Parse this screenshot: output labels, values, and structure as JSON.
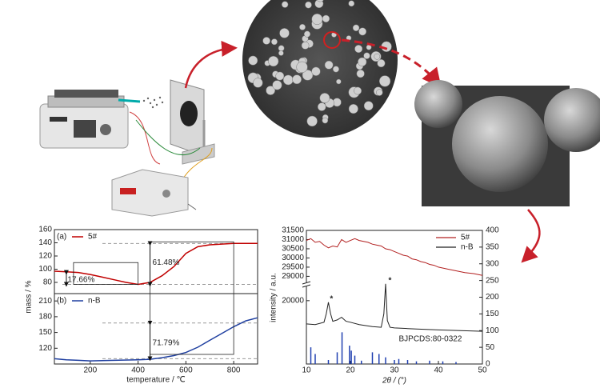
{
  "chart_data": [
    {
      "type": "line",
      "xlabel": "temperature / ℃",
      "ylabel": "mass / %",
      "xlim": [
        50,
        900
      ],
      "xticks": [
        200,
        400,
        600,
        800
      ],
      "panels": [
        {
          "label": "(a)",
          "ylim": [
            63,
            160
          ],
          "yticks": [
            80,
            100,
            120,
            140,
            160
          ],
          "hlines": [
            139,
            77
          ],
          "annotation": [
            "17.66%",
            "61.48%"
          ],
          "series": [
            {
              "name": "5#",
              "color": "#c00000",
              "x": [
                50,
                100,
                150,
                200,
                250,
                300,
                350,
                400,
                450,
                500,
                550,
                600,
                650,
                700,
                750,
                800,
                850,
                900
              ],
              "values": [
                97,
                96,
                95,
                92,
                88,
                84,
                80,
                77,
                80,
                90,
                104,
                124,
                134,
                137,
                138,
                139,
                139,
                139
              ]
            }
          ]
        },
        {
          "label": "(b)",
          "ylim": [
            90,
            224
          ],
          "yticks": [
            120,
            150,
            180,
            210
          ],
          "hlines": [
            168,
            100
          ],
          "annotation": [
            "71.79%"
          ],
          "series": [
            {
              "name": "n-B",
              "color": "#1f3fa0",
              "x": [
                50,
                100,
                150,
                200,
                300,
                400,
                450,
                500,
                550,
                600,
                650,
                700,
                750,
                800,
                850,
                900
              ],
              "values": [
                100,
                98,
                97,
                96,
                97,
                98,
                99,
                102,
                106,
                112,
                122,
                135,
                148,
                161,
                172,
                178
              ]
            }
          ]
        }
      ]
    },
    {
      "type": "line",
      "xlabel": "2θ / (°)",
      "ylabel": "intensity / a.u.",
      "xlim": [
        10,
        50
      ],
      "xticks": [
        10,
        20,
        30,
        40,
        50
      ],
      "ylim": [
        28800,
        31500
      ],
      "yticks": [
        29000,
        29500,
        30000,
        30500,
        31000,
        31500
      ],
      "ylim_lower": [
        0,
        24000
      ],
      "yticks_lower": [
        20000
      ],
      "y2lim": [
        0,
        400
      ],
      "y2ticks": [
        0,
        50,
        100,
        150,
        200,
        250,
        300,
        350,
        400
      ],
      "series": [
        {
          "name": "5#",
          "color": "#b22020",
          "axis": "y",
          "x": [
            10,
            11,
            12,
            13,
            14,
            15,
            16,
            17,
            18,
            19,
            20,
            21,
            22,
            23,
            24,
            25,
            26,
            27,
            28,
            29,
            30,
            31,
            32,
            33,
            34,
            35,
            36,
            37,
            38,
            39,
            40,
            42,
            44,
            46,
            48,
            50
          ],
          "values": [
            30950,
            31050,
            30850,
            30900,
            30700,
            30550,
            30650,
            30600,
            31000,
            30850,
            30950,
            31050,
            30950,
            30900,
            30850,
            30750,
            30700,
            30650,
            30500,
            30450,
            30350,
            30250,
            30150,
            30100,
            29950,
            29900,
            29800,
            29750,
            29650,
            29600,
            29500,
            29400,
            29300,
            29200,
            29150,
            29050
          ]
        },
        {
          "name": "n-B",
          "color": "#222222",
          "axis": "y2",
          "x": [
            10,
            12,
            14,
            14.5,
            15,
            15.5,
            16,
            17,
            18,
            19,
            20,
            22,
            25,
            27,
            27.6,
            28,
            28.4,
            29,
            30,
            33,
            35,
            40,
            45,
            50
          ],
          "values": [
            120,
            118,
            125,
            150,
            185,
            150,
            128,
            132,
            140,
            128,
            125,
            118,
            112,
            110,
            150,
            240,
            130,
            110,
            108,
            106,
            105,
            102,
            100,
            98
          ]
        },
        {
          "name": "BJPCDS:80-0322",
          "color": "#2040b0",
          "axis": "y2",
          "sticks": true,
          "x": [
            11,
            12,
            15,
            17,
            18.1,
            19.8,
            20.2,
            21,
            22.5,
            25,
            26.5,
            28,
            30,
            31,
            33,
            35,
            38,
            41,
            44
          ],
          "values": [
            50,
            30,
            12,
            35,
            95,
            55,
            40,
            25,
            10,
            35,
            30,
            20,
            12,
            15,
            12,
            8,
            10,
            8,
            6
          ]
        }
      ],
      "annotations": [
        {
          "text": "*",
          "x": 14.8
        },
        {
          "text": "*",
          "x": 28.1
        }
      ]
    }
  ]
}
